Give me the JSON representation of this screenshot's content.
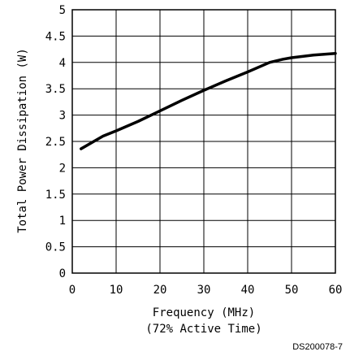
{
  "chart_data": {
    "type": "line",
    "title": "",
    "xlabel": "Frequency (MHz)",
    "xlabel_line2": "(72% Active Time)",
    "ylabel": "Total Power Dissipation (W)",
    "xlim": [
      0,
      60
    ],
    "ylim": [
      0,
      5
    ],
    "x_ticks": [
      0,
      10,
      20,
      30,
      40,
      50,
      60
    ],
    "x_tick_labels": [
      "0",
      "10",
      "20",
      "30",
      "40",
      "50",
      "60"
    ],
    "y_ticks": [
      0,
      0.5,
      1,
      1.5,
      2,
      2.5,
      3,
      3.5,
      4,
      4.5,
      5
    ],
    "y_tick_labels": [
      "0",
      "0.5",
      "1",
      "1.5",
      "2",
      "2.5",
      "3",
      "3.5",
      "4",
      "4.5",
      "5"
    ],
    "grid": true,
    "legend": "none",
    "series": [
      {
        "x": [
          2,
          7,
          10,
          15,
          20,
          25,
          30,
          35,
          40,
          45,
          48,
          50,
          55,
          60
        ],
        "values": [
          2.36,
          2.6,
          2.7,
          2.88,
          3.08,
          3.28,
          3.47,
          3.65,
          3.82,
          4.0,
          4.06,
          4.09,
          4.14,
          4.17
        ],
        "color": "#000000"
      }
    ],
    "reference_code": "DS200078-7"
  },
  "colors": {
    "line": "#000000",
    "grid": "#000000",
    "background": "#ffffff"
  }
}
